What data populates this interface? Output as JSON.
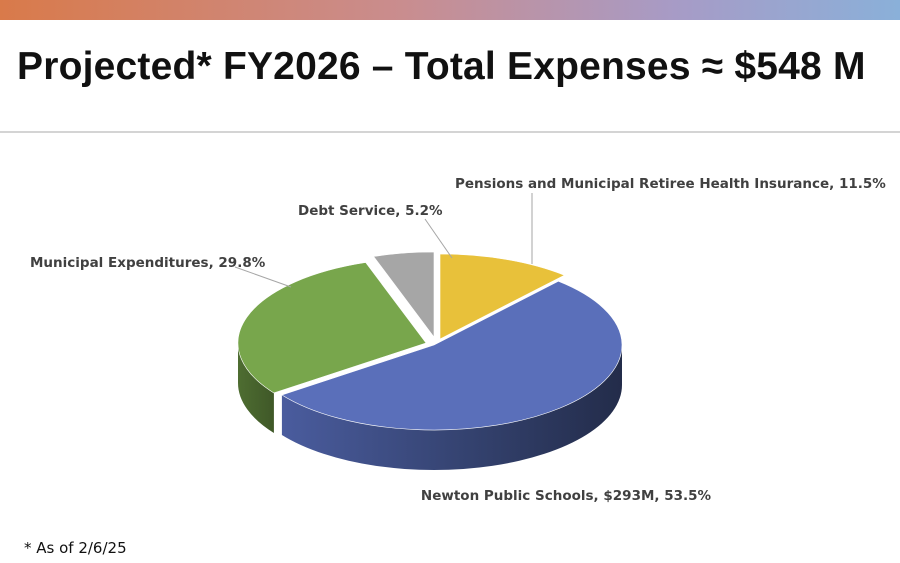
{
  "slide": {
    "title": "Projected* FY2026 – Total Expenses ≈ $548 M",
    "footnote": "* As of 2/6/25"
  },
  "chart_data": {
    "type": "pie",
    "title": "Projected* FY2026 – Total Expenses ≈ $548 M",
    "style": "3d-exploded",
    "slices": [
      {
        "name": "Newton Public Schools",
        "value": 53.5,
        "amount": "$293M",
        "label": "Newton Public Schools, $293M, 53.5%",
        "color": "#5a6fba"
      },
      {
        "name": "Municipal Expenditures",
        "value": 29.8,
        "label": "Municipal Expenditures, 29.8%",
        "color": "#78a64c"
      },
      {
        "name": "Debt Service",
        "value": 5.2,
        "label": "Debt Service, 5.2%",
        "color": "#a6a6a6"
      },
      {
        "name": "Pensions and Municipal Retiree Health Insurance",
        "value": 11.5,
        "label": "Pensions and Municipal Retiree Health Insurance, 11.5%",
        "color": "#e8c13a"
      }
    ],
    "legend": "none"
  }
}
